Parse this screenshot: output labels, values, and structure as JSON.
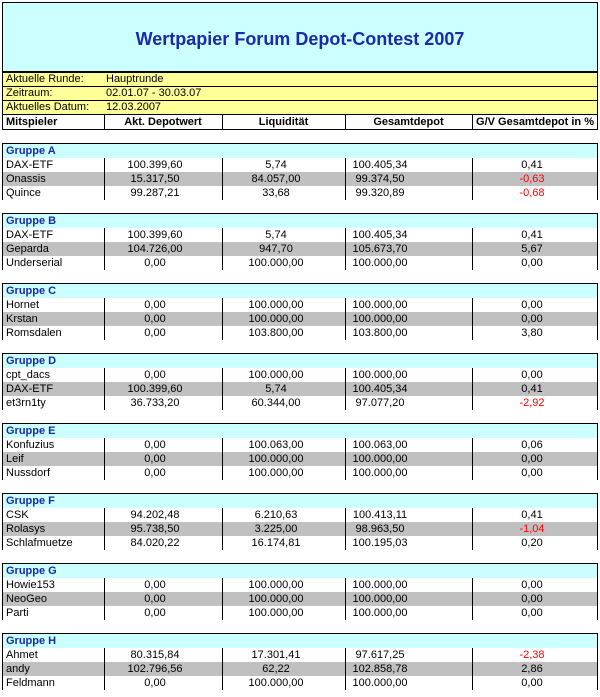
{
  "title": "Wertpapier Forum Depot-Contest 2007",
  "info": [
    [
      "Aktuelle Runde:",
      "Hauptrunde"
    ],
    [
      "Zeitraum:",
      "02.01.07 - 30.03.07"
    ],
    [
      "Aktuelles Datum:",
      "12.03.2007"
    ]
  ],
  "columns": [
    "Mitspieler",
    "Akt. Depotwert",
    "Liquidität",
    "Gesamtdepot",
    "G/V Gesamtdepot in %"
  ],
  "groups": [
    {
      "name": "Gruppe A",
      "rows": [
        [
          "DAX-ETF",
          "100.399,60",
          "5,74",
          "100.405,34",
          "0,41"
        ],
        [
          "Onassis",
          "15.317,50",
          "84.057,00",
          "99.374,50",
          "-0,63"
        ],
        [
          "Quince",
          "99.287,21",
          "33,68",
          "99.320,89",
          "-0,68"
        ]
      ]
    },
    {
      "name": "Gruppe B",
      "rows": [
        [
          "DAX-ETF",
          "100.399,60",
          "5,74",
          "100.405,34",
          "0,41"
        ],
        [
          "Geparda",
          "104.726,00",
          "947,70",
          "105.673,70",
          "5,67"
        ],
        [
          "Underserial",
          "0,00",
          "100.000,00",
          "100.000,00",
          "0,00"
        ]
      ]
    },
    {
      "name": "Gruppe C",
      "rows": [
        [
          "Hornet",
          "0,00",
          "100.000,00",
          "100.000,00",
          "0,00"
        ],
        [
          "Krstan",
          "0,00",
          "100.000,00",
          "100.000,00",
          "0,00"
        ],
        [
          "Romsdalen",
          "0,00",
          "103.800,00",
          "103.800,00",
          "3,80"
        ]
      ]
    },
    {
      "name": "Gruppe D",
      "rows": [
        [
          "cpt_dacs",
          "0,00",
          "100.000,00",
          "100.000,00",
          "0,00"
        ],
        [
          "DAX-ETF",
          "100.399,60",
          "5,74",
          "100.405,34",
          "0,41"
        ],
        [
          "et3rn1ty",
          "36.733,20",
          "60.344,00",
          "97.077,20",
          "-2,92"
        ]
      ]
    },
    {
      "name": "Gruppe E",
      "rows": [
        [
          "Konfuzius",
          "0,00",
          "100.063,00",
          "100.063,00",
          "0,06"
        ],
        [
          "Leif",
          "0,00",
          "100.000,00",
          "100.000,00",
          "0,00"
        ],
        [
          "Nussdorf",
          "0,00",
          "100.000,00",
          "100.000,00",
          "0,00"
        ]
      ]
    },
    {
      "name": "Gruppe F",
      "rows": [
        [
          "CSK",
          "94.202,48",
          "6.210,63",
          "100.413,11",
          "0,41"
        ],
        [
          "Rolasys",
          "95.738,50",
          "3.225,00",
          "98.963,50",
          "-1,04"
        ],
        [
          "Schlafmuetze",
          "84.020,22",
          "16.174,81",
          "100.195,03",
          "0,20"
        ]
      ]
    },
    {
      "name": "Gruppe G",
      "rows": [
        [
          "Howie153",
          "0,00",
          "100.000,00",
          "100.000,00",
          "0,00"
        ],
        [
          "NeoGeo",
          "0,00",
          "100.000,00",
          "100.000,00",
          "0,00"
        ],
        [
          "Parti",
          "0,00",
          "100.000,00",
          "100.000,00",
          "0,00"
        ]
      ]
    },
    {
      "name": "Gruppe H",
      "rows": [
        [
          "Ahmet",
          "80.315,84",
          "17.301,41",
          "97.617,25",
          "-2,38"
        ],
        [
          "andy",
          "102.796,56",
          "62,22",
          "102.858,78",
          "2,86"
        ],
        [
          "Feldmann",
          "0,00",
          "100.000,00",
          "100.000,00",
          "0,00"
        ]
      ]
    }
  ]
}
